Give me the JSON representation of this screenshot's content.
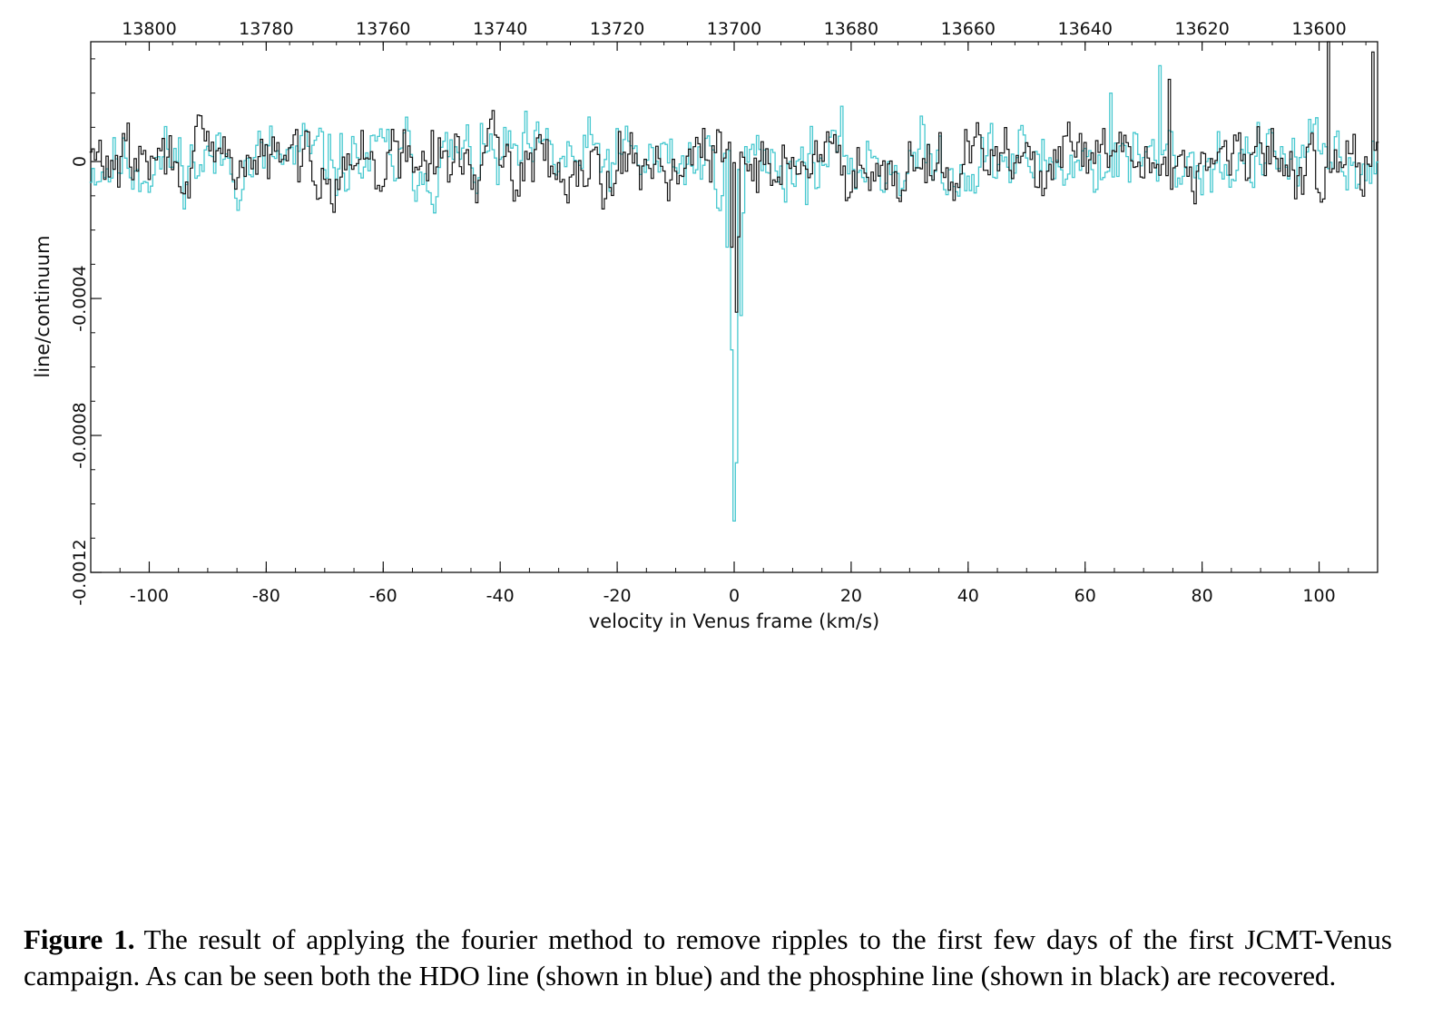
{
  "chart_data": {
    "type": "line",
    "xlabel": "velocity in Venus frame (km/s)",
    "ylabel": "line/continuum",
    "xlim": [
      -110,
      110
    ],
    "ylim": [
      -0.0012,
      0.00035
    ],
    "x_ticks": [
      "-100",
      "-80",
      "-60",
      "-40",
      "-20",
      "0",
      "20",
      "40",
      "60",
      "80",
      "100"
    ],
    "y_ticks": [
      "0",
      "-0.0004",
      "-0.0008",
      "-0.0012"
    ],
    "top_axis": {
      "ticks": [
        "13800",
        "13780",
        "13760",
        "13740",
        "13720",
        "13700",
        "13680",
        "13660",
        "13640",
        "13620",
        "13600"
      ]
    },
    "grid": false,
    "series": [
      {
        "color": "#46c8cf",
        "step": 0.4,
        "noise": 4.8e-05,
        "seed": 11,
        "features": [
          {
            "x": -1.2,
            "y": -0.00025
          },
          {
            "x": -0.4,
            "y": -0.00055
          },
          {
            "x": 0.0,
            "y": -0.00105
          },
          {
            "x": 0.4,
            "y": -0.00088
          },
          {
            "x": 1.0,
            "y": -0.00045
          },
          {
            "x": 1.6,
            "y": -0.00015
          },
          {
            "x": 72.8,
            "y": 0.00028
          },
          {
            "x": 64.6,
            "y": 0.0002
          }
        ]
      },
      {
        "color": "#111111",
        "step": 0.4,
        "noise": 4.2e-05,
        "seed": 29,
        "features": [
          {
            "x": -0.6,
            "y": -0.00025
          },
          {
            "x": 0.2,
            "y": -0.00044
          },
          {
            "x": 0.8,
            "y": -0.00022
          },
          {
            "x": 74.5,
            "y": 0.00024
          },
          {
            "x": 101.8,
            "y": 0.00035
          },
          {
            "x": 109.2,
            "y": 0.00032
          }
        ]
      }
    ]
  },
  "caption": {
    "label": "Figure 1.",
    "text": "The result of applying the fourier method to remove ripples to the first few days of the first JCMT-Venus campaign. As can be seen both the HDO line (shown in blue) and the phosphine line (shown in black) are recovered."
  }
}
